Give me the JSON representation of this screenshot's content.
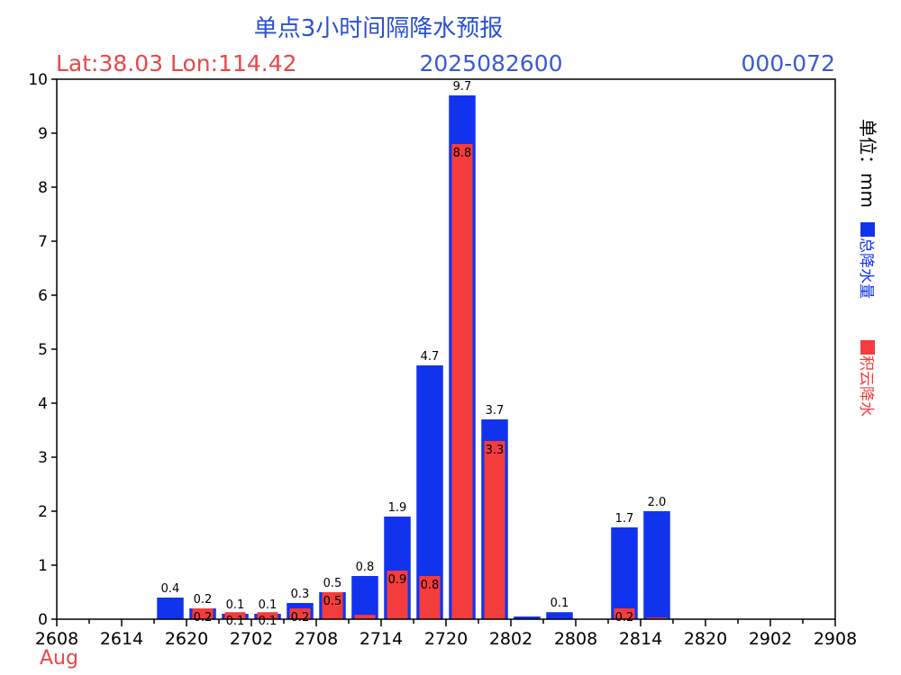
{
  "header": {
    "title": "单点3小时间隔降水预报",
    "lat_lon": "Lat:38.03  Lon:114.42",
    "init_time": "2025082600",
    "forecast_range": "000-072"
  },
  "colors": {
    "title": "#2a4fd6",
    "latlon": "#e8474a",
    "init_time": "#3a5ad8",
    "range": "#3a5ad8",
    "total": "#1233ee",
    "convective": "#f43c3c",
    "axis": "#000000"
  },
  "chart_data": {
    "type": "bar",
    "ylabel": "单位：mm",
    "xlabel": "Aug",
    "ylim": [
      0,
      10
    ],
    "yticks": [
      "0",
      "1",
      "2",
      "3",
      "4",
      "5",
      "6",
      "7",
      "8",
      "9",
      "10"
    ],
    "x_ticks": [
      "2608",
      "2614",
      "2620",
      "2702",
      "2708",
      "2714",
      "2720",
      "2802",
      "2808",
      "2814",
      "2820",
      "2902",
      "2908"
    ],
    "x_start_hour": 0,
    "x_end_hour": 72,
    "step_hours": 3,
    "legend": "right",
    "series": [
      {
        "name": "总降水量",
        "values": [
          0,
          0,
          0,
          0.4,
          0.2,
          0.1,
          0.1,
          0.3,
          0.5,
          0.8,
          1.9,
          4.7,
          9.7,
          3.7,
          0.05,
          0.13,
          0,
          1.7,
          2.0,
          0,
          0,
          0,
          0,
          0
        ],
        "labels": [
          "",
          "",
          "",
          "0.4",
          "0.2",
          "0.1",
          "0.1",
          "0.3",
          "0.5",
          "0.8",
          "1.9",
          "4.7",
          "9.7",
          "3.7",
          "",
          "0.1",
          "",
          "1.7",
          "2.0",
          "",
          "",
          "",
          "",
          ""
        ]
      },
      {
        "name": "积云降水",
        "values": [
          0,
          0,
          0,
          0,
          0.2,
          0.13,
          0.13,
          0.2,
          0.5,
          0.08,
          0.9,
          0.8,
          8.8,
          3.3,
          0,
          0,
          0,
          0.2,
          0.03,
          0,
          0,
          0,
          0,
          0
        ],
        "labels": [
          "",
          "",
          "",
          "",
          "0.2",
          "0.1",
          "0.1",
          "0.2",
          "0.5",
          "",
          "0.9",
          "0.8",
          "8.8",
          "3.3",
          "",
          "",
          "",
          "0.2",
          "",
          "",
          "",
          "",
          "",
          ""
        ]
      }
    ]
  }
}
